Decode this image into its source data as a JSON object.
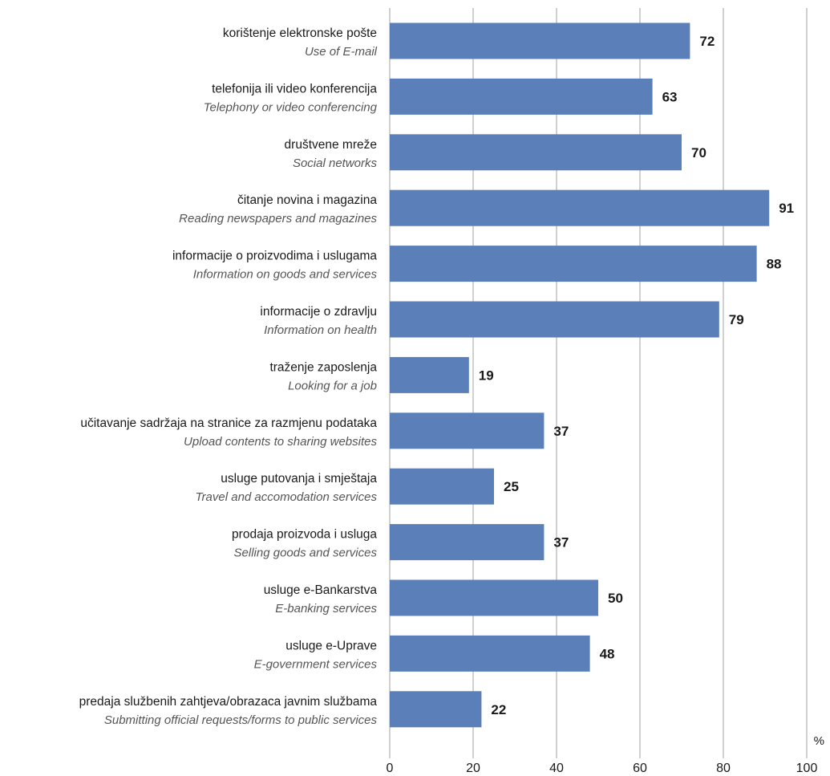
{
  "chart_data": {
    "type": "bar",
    "orientation": "horizontal",
    "categories": [
      {
        "label": "korištenje elektronske pošte",
        "label_en": "Use of E-mail"
      },
      {
        "label": "telefonija ili video konferencija",
        "label_en": "Telephony or video conferencing"
      },
      {
        "label": "društvene mreže",
        "label_en": "Social networks"
      },
      {
        "label": "čitanje novina i magazina",
        "label_en": "Reading newspapers and magazines"
      },
      {
        "label": "informacije o proizvodima i uslugama",
        "label_en": "Information on goods and services"
      },
      {
        "label": "informacije o zdravlju",
        "label_en": "Information on health"
      },
      {
        "label": "traženje zaposlenja",
        "label_en": "Looking for a job"
      },
      {
        "label": "učitavanje sadržaja na stranice za razmjenu podataka",
        "label_en": "Upload contents to sharing websites"
      },
      {
        "label": "usluge putovanja i smještaja",
        "label_en": "Travel and accomodation services"
      },
      {
        "label": "prodaja proizvoda i usluga",
        "label_en": "Selling goods and services"
      },
      {
        "label": "usluge e-Bankarstva",
        "label_en": "E-banking services"
      },
      {
        "label": "usluge e-Uprave",
        "label_en": "E-government services"
      },
      {
        "label": "predaja službenih zahtjeva/obrazaca javnim službama",
        "label_en": "Submitting official requests/forms to public services"
      }
    ],
    "values": [
      72,
      63,
      70,
      91,
      88,
      79,
      19,
      37,
      25,
      37,
      50,
      48,
      22
    ],
    "xlim": [
      0,
      100
    ],
    "xticks": [
      0,
      20,
      40,
      60,
      80,
      100
    ],
    "unit": "%",
    "grid": "vertical",
    "bar_color": "#5b7fb9",
    "grid_color": "#bdbdbd"
  }
}
